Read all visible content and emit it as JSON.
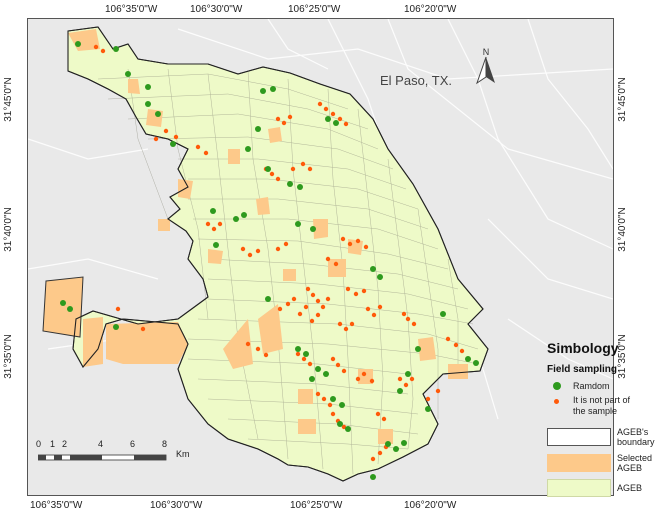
{
  "coords": {
    "top": [
      "106°35'0\"W",
      "106°30'0\"W",
      "106°25'0\"W",
      "106°20'0\"W"
    ],
    "bottom": [
      "106°35'0\"W",
      "106°30'0\"W",
      "106°25'0\"W",
      "106°20'0\"W"
    ],
    "left": [
      "31°45'0\"N",
      "31°40'0\"N",
      "31°35'0\"N"
    ],
    "right": [
      "31°45'0\"N",
      "31°40'0\"N",
      "31°35'0\"N"
    ]
  },
  "map": {
    "city_label": "El Paso, TX.",
    "north_label": "N",
    "scale_ticks": [
      "0",
      "1",
      "2",
      "4",
      "6",
      "8"
    ],
    "scale_unit": "Km"
  },
  "legend": {
    "title": "Simbology",
    "subtitle": "Field sampling",
    "random_label": "Ramdom",
    "not_sample_label": "It is not part of the sample",
    "boundary_label": "AGEB's boundary",
    "selected_label": "Selected AGEB",
    "ageb_label": "AGEB"
  },
  "colors": {
    "random": "#2e9a1e",
    "not_sample": "#ff5a0a",
    "selected": "#fdc98a",
    "ageb": "#eefac8",
    "background": "#e9e9e9"
  }
}
